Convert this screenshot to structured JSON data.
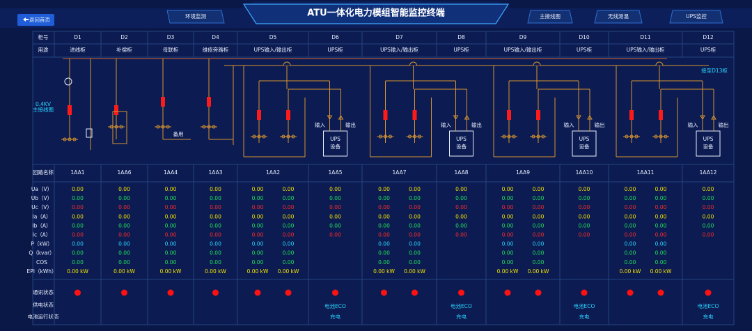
{
  "header": {
    "back": "返回首页",
    "nav_left": [
      "环境监测"
    ],
    "title": "ATU一体化电力模组智能监控终端",
    "nav_right": [
      "主接线图",
      "无线测温",
      "UPS监控"
    ]
  },
  "diagram": {
    "label": [
      "0.4KV",
      "主接线图"
    ],
    "spare": "备用",
    "link": "接至D13柜"
  },
  "table": {
    "row_labels": {
      "cabinet": "柜号",
      "use": "用途",
      "circuit": "回路名称",
      "comm": "通讯状态",
      "power": "供电状态",
      "battery": "电池运行状态"
    },
    "measure_labels": [
      "Ua（V）",
      "Ub（V）",
      "Uc（V）",
      "Ia（A）",
      "Ib（A）",
      "Ic（A）",
      "P（kW）",
      "Q（kvar）",
      "COS",
      "EPI（kWh）"
    ],
    "measure_colors": [
      "#f5e200",
      "#21e05a",
      "#ff2a2a",
      "#f5e200",
      "#21e05a",
      "#ff2a2a",
      "#2ad4ff",
      "#21e05a",
      "#21e05a",
      "#f5e200"
    ],
    "columns": [
      {
        "cabinet": "D1",
        "use": "进线柜",
        "circuit": "1AA1",
        "readings": [
          [
            "0.00",
            "0.00",
            "0.00",
            "0.00",
            "0.00",
            "0.00",
            "0.00",
            "0.00",
            "0.00",
            "0.00 kW"
          ]
        ]
      },
      {
        "cabinet": "D2",
        "use": "补偿柜",
        "circuit": "1AA6",
        "readings": [
          [
            "0.00",
            "0.00",
            "0.00",
            "0.00",
            "0.00",
            "0.00",
            "0.00",
            "0.00",
            "0.00",
            "0.00 kW"
          ]
        ]
      },
      {
        "cabinet": "D3",
        "use": "母联柜",
        "circuit": "1AA4",
        "readings": [
          [
            "0.00",
            "0.00",
            "0.00",
            "0.00",
            "0.00",
            "0.00",
            "0.00",
            "0.00",
            "0.00",
            "0.00 kW"
          ]
        ]
      },
      {
        "cabinet": "D4",
        "use": "维修旁路柜",
        "circuit": "1AA3",
        "readings": [
          [
            "0.00",
            "0.00",
            "0.00",
            "0.00",
            "0.00",
            "0.00",
            "0.00",
            "0.00",
            "0.00",
            "0.00 kW"
          ]
        ]
      },
      {
        "cabinet": "D5",
        "use": "UPS输入/输出柜",
        "circuit": "1AA2",
        "readings": [
          [
            "0.00",
            "0.00",
            "0.00",
            "0.00",
            "0.00",
            "0.00",
            "0.00",
            "0.00",
            "0.00",
            "0.00 kW"
          ],
          [
            "0.00",
            "0.00",
            "0.00",
            "0.00",
            "0.00",
            "0.00",
            "0.00",
            "0.00",
            "0.00",
            "0.00 kW"
          ]
        ]
      },
      {
        "cabinet": "D6",
        "use": "UPS柜",
        "circuit": "1AA5",
        "readings": [
          [
            "0.00",
            "0.00",
            "0.00",
            "0.00",
            "0.00",
            "0.00"
          ]
        ],
        "ups": {
          "in": "输入",
          "out": "输出",
          "box": [
            "UPS",
            "设备"
          ]
        },
        "power_state": "电池ECO",
        "battery_state": "充电"
      },
      {
        "cabinet": "D7",
        "use": "UPS输入/输出柜",
        "circuit": "1AA7",
        "readings": [
          [
            "0.00",
            "0.00",
            "0.00",
            "0.00",
            "0.00",
            "0.00",
            "0.00",
            "0.00",
            "0.00",
            "0.00 kW"
          ],
          [
            "0.00",
            "0.00",
            "0.00",
            "0.00",
            "0.00",
            "0.00",
            "0.00",
            "0.00",
            "0.00",
            "0.00 kW"
          ]
        ]
      },
      {
        "cabinet": "D8",
        "use": "UPS柜",
        "circuit": "1AA8",
        "readings": [
          [
            "0.00",
            "0.00",
            "0.00",
            "0.00",
            "0.00",
            "0.00"
          ]
        ],
        "ups": {
          "in": "输入",
          "out": "输出",
          "box": [
            "UPS",
            "设备"
          ]
        },
        "power_state": "电池ECO",
        "battery_state": "充电"
      },
      {
        "cabinet": "D9",
        "use": "UPS输入/输出柜",
        "circuit": "1AA9",
        "readings": [
          [
            "0.00",
            "0.00",
            "0.00",
            "0.00",
            "0.00",
            "0.00",
            "0.00",
            "0.00",
            "0.00",
            "0.00 kW"
          ],
          [
            "0.00",
            "0.00",
            "0.00",
            "0.00",
            "0.00",
            "0.00",
            "0.00",
            "0.00",
            "0.00",
            "0.00 kW"
          ]
        ]
      },
      {
        "cabinet": "D10",
        "use": "UPS柜",
        "circuit": "1AA10",
        "readings": [
          [
            "0.00",
            "0.00",
            "0.00",
            "0.00",
            "0.00",
            "0.00"
          ]
        ],
        "ups": {
          "in": "输入",
          "out": "输出",
          "box": [
            "UPS",
            "设备"
          ]
        },
        "power_state": "电池ECO",
        "battery_state": "充电"
      },
      {
        "cabinet": "D11",
        "use": "UPS输入/输出柜",
        "circuit": "1AA11",
        "readings": [
          [
            "0.00",
            "0.00",
            "0.00",
            "0.00",
            "0.00",
            "0.00",
            "0.00",
            "0.00",
            "0.00",
            "0.00 kW"
          ],
          [
            "0.00",
            "0.00",
            "0.00",
            "0.00",
            "0.00",
            "0.00",
            "0.00",
            "0.00",
            "0.00",
            "0.00 kW"
          ]
        ]
      },
      {
        "cabinet": "D12",
        "use": "UPS柜",
        "circuit": "1AA12",
        "readings": [
          [
            "0.00",
            "0.00",
            "0.00",
            "0.00",
            "0.00",
            "0.00"
          ]
        ],
        "ups": {
          "in": "输入",
          "out": "输出",
          "box": [
            "UPS",
            "设备"
          ]
        },
        "power_state": "电池ECO",
        "battery_state": "充电"
      }
    ]
  }
}
